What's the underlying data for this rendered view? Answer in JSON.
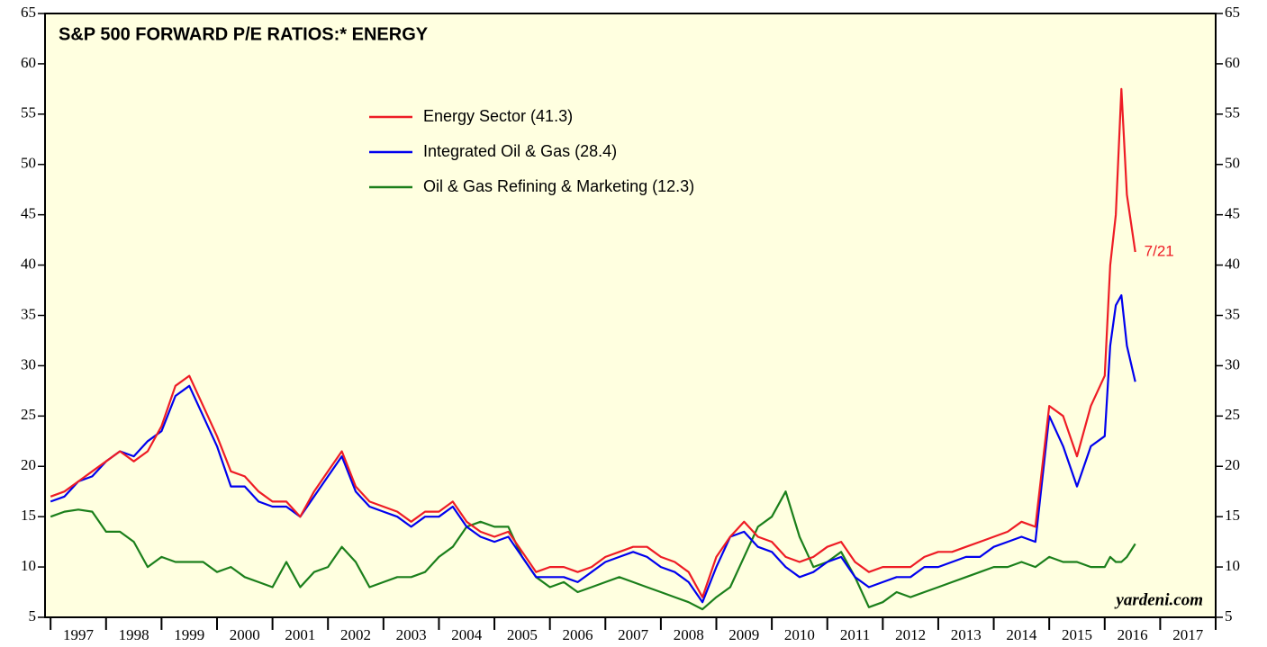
{
  "chart_data": {
    "type": "line",
    "title": "S&P 500 FORWARD P/E RATIOS:* ENERGY",
    "x": [
      1997,
      1997.25,
      1997.5,
      1997.75,
      1998,
      1998.25,
      1998.5,
      1998.75,
      1999,
      1999.25,
      1999.5,
      1999.75,
      2000,
      2000.25,
      2000.5,
      2000.75,
      2001,
      2001.25,
      2001.5,
      2001.75,
      2002,
      2002.25,
      2002.5,
      2002.75,
      2003,
      2003.25,
      2003.5,
      2003.75,
      2004,
      2004.25,
      2004.5,
      2004.75,
      2005,
      2005.25,
      2005.5,
      2005.75,
      2006,
      2006.25,
      2006.5,
      2006.75,
      2007,
      2007.25,
      2007.5,
      2007.75,
      2008,
      2008.25,
      2008.5,
      2008.75,
      2009,
      2009.25,
      2009.5,
      2009.75,
      2010,
      2010.25,
      2010.5,
      2010.75,
      2011,
      2011.25,
      2011.5,
      2011.75,
      2012,
      2012.25,
      2012.5,
      2012.75,
      2013,
      2013.25,
      2013.5,
      2013.75,
      2014,
      2014.25,
      2014.5,
      2014.75,
      2015,
      2015.25,
      2015.5,
      2015.75,
      2016,
      2016.1,
      2016.2,
      2016.3,
      2016.4,
      2016.55
    ],
    "series": [
      {
        "name": "Energy Sector (41.3)",
        "color": "#ee1c25",
        "values": [
          17,
          17.5,
          18.5,
          19.5,
          20.5,
          21.5,
          20.5,
          21.5,
          24,
          28,
          29,
          26,
          23,
          19.5,
          19,
          17.5,
          16.5,
          16.5,
          15,
          17.5,
          19.5,
          21.5,
          18,
          16.5,
          16,
          15.5,
          14.5,
          15.5,
          15.5,
          16.5,
          14.5,
          13.5,
          13,
          13.5,
          11.5,
          9.5,
          10,
          10,
          9.5,
          10,
          11,
          11.5,
          12,
          12,
          11,
          10.5,
          9.5,
          7,
          11,
          13,
          14.5,
          13,
          12.5,
          11,
          10.5,
          11,
          12,
          12.5,
          10.5,
          9.5,
          10,
          10,
          10,
          11,
          11.5,
          11.5,
          12,
          12.5,
          13,
          13.5,
          14.5,
          14,
          26,
          25,
          21,
          26,
          29,
          40,
          45,
          57.5,
          47,
          41.3
        ]
      },
      {
        "name": "Integrated Oil & Gas (28.4)",
        "color": "#0000ee",
        "values": [
          16.5,
          17,
          18.5,
          19,
          20.5,
          21.5,
          21,
          22.5,
          23.5,
          27,
          28,
          25,
          22,
          18,
          18,
          16.5,
          16,
          16,
          15,
          17,
          19,
          21,
          17.5,
          16,
          15.5,
          15,
          14,
          15,
          15,
          16,
          14,
          13,
          12.5,
          13,
          11,
          9,
          9,
          9,
          8.5,
          9.5,
          10.5,
          11,
          11.5,
          11,
          10,
          9.5,
          8.5,
          6.5,
          10,
          13,
          13.5,
          12,
          11.5,
          10,
          9,
          9.5,
          10.5,
          11,
          9,
          8,
          8.5,
          9,
          9,
          10,
          10,
          10.5,
          11,
          11,
          12,
          12.5,
          13,
          12.5,
          25,
          22,
          18,
          22,
          23,
          32,
          36,
          37,
          32,
          28.4
        ]
      },
      {
        "name": "Oil & Gas Refining & Marketing (12.3)",
        "color": "#1b7f1b",
        "values": [
          15,
          15.5,
          15.7,
          15.5,
          13.5,
          13.5,
          12.5,
          10,
          11,
          10.5,
          10.5,
          10.5,
          9.5,
          10,
          9,
          8.5,
          8,
          10.5,
          8,
          9.5,
          10,
          12,
          10.5,
          8,
          8.5,
          9,
          9,
          9.5,
          11,
          12,
          14,
          14.5,
          14,
          14,
          11,
          9,
          8,
          8.5,
          7.5,
          8,
          8.5,
          9,
          8.5,
          8,
          7.5,
          7,
          6.5,
          5.8,
          7,
          8,
          11,
          14,
          15,
          17.5,
          13,
          10,
          10.5,
          11.5,
          9,
          6,
          6.5,
          7.5,
          7,
          7.5,
          8,
          8.5,
          9,
          9.5,
          10,
          10,
          10.5,
          10,
          11,
          10.5,
          10.5,
          10,
          10,
          11,
          10.5,
          10.5,
          11,
          12.3
        ]
      }
    ],
    "categories": [
      "1997",
      "1998",
      "1999",
      "2000",
      "2001",
      "2002",
      "2003",
      "2004",
      "2005",
      "2006",
      "2007",
      "2008",
      "2009",
      "2010",
      "2011",
      "2012",
      "2013",
      "2014",
      "2015",
      "2016",
      "2017"
    ],
    "xlim": [
      1996.9,
      2018
    ],
    "xticks": [
      1997,
      1998,
      1999,
      2000,
      2001,
      2002,
      2003,
      2004,
      2005,
      2006,
      2007,
      2008,
      2009,
      2010,
      2011,
      2012,
      2013,
      2014,
      2015,
      2016,
      2017,
      2018
    ],
    "ylim": [
      5,
      65
    ],
    "yticks": [
      5,
      10,
      15,
      20,
      25,
      30,
      35,
      40,
      45,
      50,
      55,
      60,
      65
    ],
    "annotation": "7/21",
    "source": "yardeni.com",
    "background": "#ffffe0"
  }
}
